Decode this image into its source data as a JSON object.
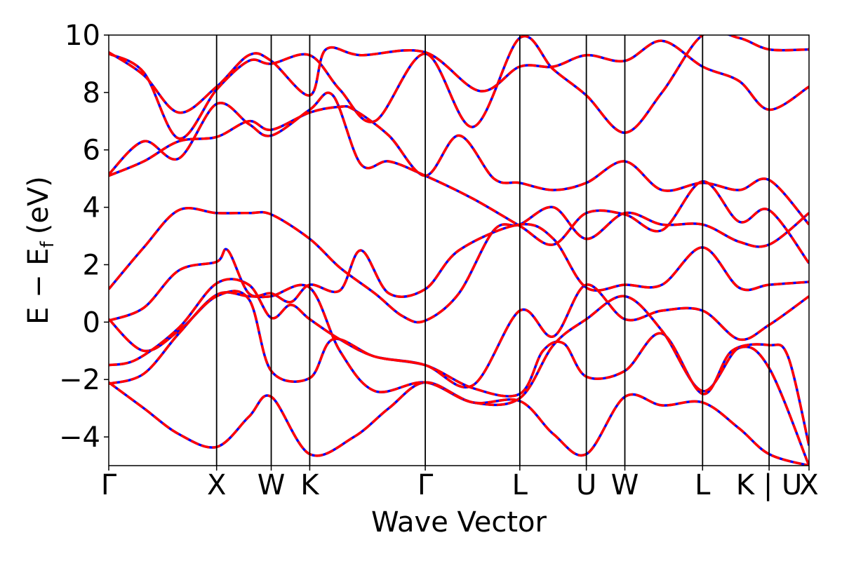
{
  "chart_data": {
    "type": "line",
    "title": "",
    "xlabel": "Wave Vector",
    "ylabel": "E − E",
    "ylabel_sub": "f",
    "ylabel_unit": "(eV)",
    "ylim": [
      -5,
      10
    ],
    "yticks": [
      -4,
      -2,
      0,
      2,
      4,
      6,
      8,
      10
    ],
    "ytick_labels": [
      "−4",
      "−2",
      "0",
      "2",
      "4",
      "6",
      "8",
      "10"
    ],
    "xlim": [
      0,
      1
    ],
    "high_symmetry_points": [
      {
        "label": "Γ",
        "x": 0.0
      },
      {
        "label": "X",
        "x": 0.154
      },
      {
        "label": "W",
        "x": 0.232
      },
      {
        "label": "K",
        "x": 0.287
      },
      {
        "label": "Γ",
        "x": 0.452
      },
      {
        "label": "L",
        "x": 0.587
      },
      {
        "label": "U",
        "x": 0.682
      },
      {
        "label": "W",
        "x": 0.737
      },
      {
        "label": "L",
        "x": 0.848
      },
      {
        "label": "K | U",
        "x": 0.943
      },
      {
        "label": "X",
        "x": 1.0
      }
    ],
    "grid": false,
    "legend": "none",
    "colors": {
      "band_a": "#ff0000",
      "band_b": "#0000ff"
    },
    "series": [
      {
        "style": "solid",
        "color": "#0000ff",
        "bands": [
          [
            [
              0,
              -2.1
            ],
            [
              0.05,
              -3.0
            ],
            [
              0.1,
              -3.9
            ],
            [
              0.154,
              -4.35
            ],
            [
              0.2,
              -3.3
            ],
            [
              0.232,
              -2.6
            ],
            [
              0.287,
              -4.6
            ],
            [
              0.35,
              -4.0
            ],
            [
              0.4,
              -3.0
            ],
            [
              0.452,
              -2.1
            ],
            [
              0.52,
              -2.8
            ],
            [
              0.587,
              -2.75
            ],
            [
              0.635,
              -3.9
            ],
            [
              0.682,
              -4.6
            ],
            [
              0.737,
              -2.6
            ],
            [
              0.79,
              -2.9
            ],
            [
              0.848,
              -2.8
            ],
            [
              0.9,
              -3.7
            ],
            [
              0.943,
              -4.6
            ],
            [
              1.0,
              -5.0
            ]
          ],
          [
            [
              0,
              0.1
            ],
            [
              0.05,
              -1.0
            ],
            [
              0.1,
              -0.3
            ],
            [
              0.154,
              0.9
            ],
            [
              0.2,
              0.8
            ],
            [
              0.232,
              -1.7
            ],
            [
              0.287,
              -1.95
            ],
            [
              0.32,
              -0.6
            ],
            [
              0.38,
              -1.2
            ],
            [
              0.452,
              -1.5
            ],
            [
              0.52,
              -2.3
            ],
            [
              0.587,
              -2.5
            ],
            [
              0.62,
              -1.0
            ],
            [
              0.65,
              -0.75
            ],
            [
              0.682,
              -1.9
            ],
            [
              0.737,
              -1.7
            ],
            [
              0.79,
              -0.4
            ],
            [
              0.848,
              -2.5
            ],
            [
              0.89,
              -1.0
            ],
            [
              0.943,
              -0.8
            ],
            [
              0.97,
              -1.2
            ],
            [
              1.0,
              -4.3
            ]
          ],
          [
            [
              0,
              1.15
            ],
            [
              0.05,
              2.6
            ],
            [
              0.1,
              3.9
            ],
            [
              0.154,
              3.8
            ],
            [
              0.2,
              3.8
            ],
            [
              0.232,
              3.75
            ],
            [
              0.287,
              2.9
            ],
            [
              0.33,
              1.9
            ],
            [
              0.38,
              1.0
            ],
            [
              0.42,
              0.2
            ],
            [
              0.452,
              0.05
            ],
            [
              0.5,
              1.0
            ],
            [
              0.55,
              3.2
            ],
            [
              0.587,
              3.4
            ],
            [
              0.635,
              4.0
            ],
            [
              0.682,
              2.9
            ],
            [
              0.737,
              3.8
            ],
            [
              0.79,
              3.4
            ],
            [
              0.848,
              3.4
            ],
            [
              0.9,
              2.8
            ],
            [
              0.943,
              2.7
            ],
            [
              1.0,
              3.8
            ]
          ],
          [
            [
              0,
              5.1
            ],
            [
              0.05,
              5.6
            ],
            [
              0.1,
              6.3
            ],
            [
              0.154,
              6.45
            ],
            [
              0.2,
              7.0
            ],
            [
              0.232,
              6.7
            ],
            [
              0.287,
              7.3
            ],
            [
              0.33,
              7.5
            ],
            [
              0.35,
              7.4
            ],
            [
              0.4,
              6.5
            ],
            [
              0.452,
              5.1
            ],
            [
              0.5,
              6.5
            ],
            [
              0.55,
              5.0
            ],
            [
              0.587,
              4.85
            ],
            [
              0.635,
              4.6
            ],
            [
              0.682,
              4.85
            ],
            [
              0.737,
              5.6
            ],
            [
              0.79,
              4.6
            ],
            [
              0.848,
              4.85
            ],
            [
              0.9,
              4.6
            ],
            [
              0.943,
              4.95
            ],
            [
              1.0,
              3.4
            ]
          ],
          [
            [
              0,
              9.4
            ],
            [
              0.05,
              8.6
            ],
            [
              0.1,
              7.3
            ],
            [
              0.154,
              8.2
            ],
            [
              0.2,
              9.3
            ],
            [
              0.232,
              9.1
            ],
            [
              0.287,
              7.9
            ],
            [
              0.31,
              9.5
            ],
            [
              0.36,
              9.3
            ],
            [
              0.452,
              9.4
            ],
            [
              0.53,
              8.05
            ],
            [
              0.587,
              8.9
            ],
            [
              0.635,
              8.9
            ],
            [
              0.682,
              9.3
            ],
            [
              0.737,
              9.1
            ],
            [
              0.79,
              9.8
            ],
            [
              0.848,
              8.9
            ],
            [
              0.9,
              8.4
            ],
            [
              0.943,
              7.4
            ],
            [
              1.0,
              8.2
            ]
          ]
        ]
      },
      {
        "style": "dashed",
        "color": "#ff0000",
        "bands": [
          [
            [
              0,
              -1.5
            ],
            [
              0.04,
              -1.3
            ],
            [
              0.1,
              -0.2
            ],
            [
              0.154,
              1.35
            ],
            [
              0.2,
              1.3
            ],
            [
              0.232,
              0.15
            ],
            [
              0.26,
              0.6
            ],
            [
              0.287,
              0.1
            ],
            [
              0.33,
              -0.6
            ],
            [
              0.38,
              -1.2
            ],
            [
              0.452,
              -1.5
            ],
            [
              0.52,
              -2.2
            ],
            [
              0.587,
              0.4
            ],
            [
              0.635,
              -0.5
            ],
            [
              0.682,
              1.3
            ],
            [
              0.737,
              0.1
            ],
            [
              0.79,
              0.4
            ],
            [
              0.848,
              0.4
            ],
            [
              0.9,
              -0.6
            ],
            [
              0.943,
              -0.1
            ],
            [
              1.0,
              0.9
            ]
          ],
          [
            [
              0,
              0.05
            ],
            [
              0.05,
              0.5
            ],
            [
              0.1,
              1.8
            ],
            [
              0.154,
              2.1
            ],
            [
              0.17,
              2.5
            ],
            [
              0.2,
              1.0
            ],
            [
              0.232,
              1.0
            ],
            [
              0.26,
              0.7
            ],
            [
              0.287,
              1.3
            ],
            [
              0.33,
              1.1
            ],
            [
              0.36,
              2.5
            ],
            [
              0.4,
              1.0
            ],
            [
              0.452,
              1.15
            ],
            [
              0.5,
              2.5
            ],
            [
              0.587,
              3.4
            ],
            [
              0.635,
              2.9
            ],
            [
              0.682,
              1.2
            ],
            [
              0.737,
              1.3
            ],
            [
              0.79,
              1.3
            ],
            [
              0.848,
              2.6
            ],
            [
              0.9,
              1.2
            ],
            [
              0.943,
              1.3
            ],
            [
              1.0,
              1.4
            ]
          ],
          [
            [
              0,
              5.15
            ],
            [
              0.05,
              6.3
            ],
            [
              0.1,
              5.7
            ],
            [
              0.154,
              7.6
            ],
            [
              0.2,
              6.9
            ],
            [
              0.232,
              6.5
            ],
            [
              0.287,
              7.4
            ],
            [
              0.32,
              7.9
            ],
            [
              0.36,
              5.5
            ],
            [
              0.4,
              5.6
            ],
            [
              0.452,
              5.1
            ],
            [
              0.52,
              4.3
            ],
            [
              0.587,
              3.35
            ],
            [
              0.635,
              2.7
            ],
            [
              0.682,
              3.8
            ],
            [
              0.737,
              3.75
            ],
            [
              0.79,
              3.2
            ],
            [
              0.848,
              4.9
            ],
            [
              0.9,
              3.5
            ],
            [
              0.943,
              3.9
            ],
            [
              1.0,
              2.05
            ]
          ],
          [
            [
              0,
              -2.15
            ],
            [
              0.05,
              -1.8
            ],
            [
              0.1,
              -0.4
            ],
            [
              0.154,
              0.95
            ],
            [
              0.2,
              0.9
            ],
            [
              0.232,
              0.9
            ],
            [
              0.287,
              1.2
            ],
            [
              0.33,
              -1.0
            ],
            [
              0.38,
              -2.4
            ],
            [
              0.452,
              -2.1
            ],
            [
              0.52,
              -2.8
            ],
            [
              0.587,
              -2.65
            ],
            [
              0.635,
              -0.8
            ],
            [
              0.682,
              0.1
            ],
            [
              0.737,
              0.9
            ],
            [
              0.79,
              -0.3
            ],
            [
              0.848,
              -2.4
            ],
            [
              0.9,
              -0.9
            ],
            [
              0.943,
              -1.6
            ],
            [
              1.0,
              -5.0
            ]
          ],
          [
            [
              0,
              9.35
            ],
            [
              0.05,
              8.7
            ],
            [
              0.1,
              6.4
            ],
            [
              0.154,
              8.1
            ],
            [
              0.2,
              9.1
            ],
            [
              0.232,
              9.0
            ],
            [
              0.287,
              9.3
            ],
            [
              0.33,
              8.1
            ],
            [
              0.38,
              7.0
            ],
            [
              0.452,
              9.35
            ],
            [
              0.52,
              6.8
            ],
            [
              0.587,
              9.9
            ],
            [
              0.635,
              8.8
            ],
            [
              0.682,
              7.9
            ],
            [
              0.737,
              6.6
            ],
            [
              0.79,
              8.0
            ],
            [
              0.848,
              10.0
            ],
            [
              0.9,
              9.9
            ],
            [
              0.943,
              9.5
            ],
            [
              1.0,
              9.5
            ]
          ]
        ]
      }
    ]
  }
}
